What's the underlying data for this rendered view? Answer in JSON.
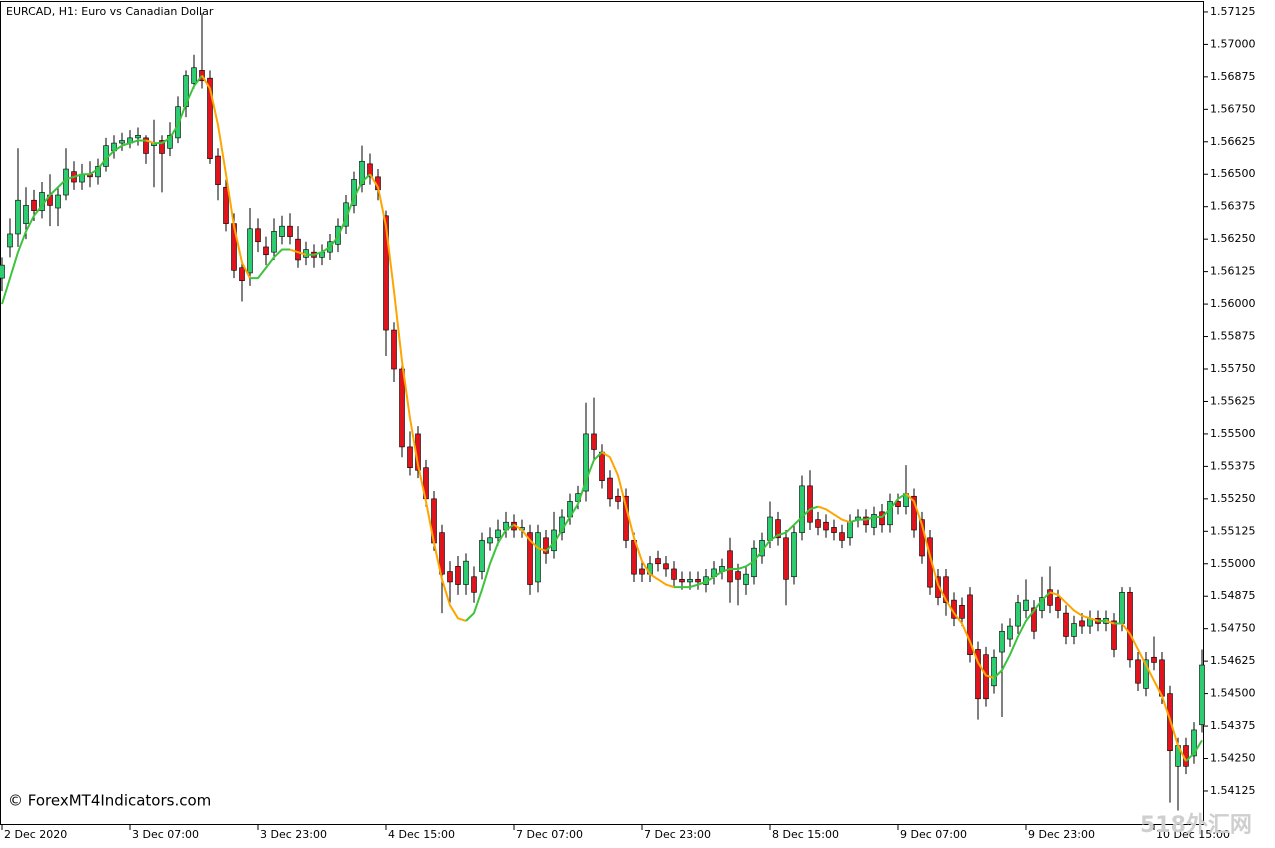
{
  "chart_data": {
    "type": "candlestick",
    "title": "EURCAD, H1:  Euro vs Canadian Dollar",
    "annotations": [
      "© ForexMT4Indicators.com",
      "518外汇网"
    ],
    "bull_color": "#2ecc71",
    "bear_color": "#e0141c",
    "xlim": [
      -0.25,
      150.25
    ],
    "xticks": [
      {
        "value": 0,
        "label": "2 Dec 2020"
      },
      {
        "value": 16,
        "label": "3 Dec 07:00"
      },
      {
        "value": 32,
        "label": "3 Dec 23:00"
      },
      {
        "value": 48,
        "label": "4 Dec 15:00"
      },
      {
        "value": 64,
        "label": "7 Dec 07:00"
      },
      {
        "value": 80,
        "label": "7 Dec 23:00"
      },
      {
        "value": 96,
        "label": "8 Dec 15:00"
      },
      {
        "value": 112,
        "label": "9 Dec 07:00"
      },
      {
        "value": 128,
        "label": "9 Dec 23:00"
      },
      {
        "value": 144,
        "label": "10 Dec 15:00"
      }
    ],
    "ylim": [
      1.53994,
      1.57171
    ],
    "yticks": [
      1.57125,
      {
        "value": 1.57,
        "label": "1.57000"
      },
      1.56875,
      {
        "value": 1.5675,
        "label": "1.56750"
      },
      1.56625,
      {
        "value": 1.565,
        "label": "1.56500"
      },
      1.56375,
      {
        "value": 1.5625,
        "label": "1.56250"
      },
      1.56125,
      {
        "value": 1.56,
        "label": "1.56000"
      },
      1.55875,
      {
        "value": 1.5575,
        "label": "1.55750"
      },
      1.55625,
      {
        "value": 1.555,
        "label": "1.55500"
      },
      1.55375,
      {
        "value": 1.5525,
        "label": "1.55250"
      },
      1.55125,
      {
        "value": 1.55,
        "label": "1.55000"
      },
      1.54875,
      {
        "value": 1.5475,
        "label": "1.54750"
      },
      1.54625,
      {
        "value": 1.545,
        "label": "1.54500"
      },
      1.54375,
      {
        "value": 1.5425,
        "label": "1.54250"
      },
      1.54125
    ],
    "candles": [
      [
        1.561,
        1.5618,
        1.5605,
        1.5615
      ],
      [
        1.5622,
        1.5633,
        1.5618,
        1.5627
      ],
      [
        1.5627,
        1.566,
        1.5622,
        1.564
      ],
      [
        1.5631,
        1.5645,
        1.5625,
        1.5638
      ],
      [
        1.564,
        1.5644,
        1.5632,
        1.5636
      ],
      [
        1.5636,
        1.5647,
        1.5633,
        1.5643
      ],
      [
        1.5642,
        1.565,
        1.563,
        1.5638
      ],
      [
        1.5637,
        1.5645,
        1.563,
        1.5642
      ],
      [
        1.5642,
        1.566,
        1.564,
        1.5652
      ],
      [
        1.5651,
        1.5655,
        1.5644,
        1.5647
      ],
      [
        1.5647,
        1.5654,
        1.5644,
        1.565
      ],
      [
        1.565,
        1.5655,
        1.5645,
        1.5649
      ],
      [
        1.5649,
        1.5656,
        1.5646,
        1.5653
      ],
      [
        1.5653,
        1.5664,
        1.5651,
        1.5661
      ],
      [
        1.5659,
        1.5665,
        1.5656,
        1.5662
      ],
      [
        1.5662,
        1.5666,
        1.5659,
        1.5663
      ],
      [
        1.5662,
        1.5667,
        1.566,
        1.5664
      ],
      [
        1.5664,
        1.5668,
        1.5661,
        1.5665
      ],
      [
        1.5664,
        1.5665,
        1.5654,
        1.5658
      ],
      [
        1.5661,
        1.5671,
        1.5645,
        1.5662
      ],
      [
        1.5663,
        1.5665,
        1.5643,
        1.5658
      ],
      [
        1.566,
        1.567,
        1.5657,
        1.5665
      ],
      [
        1.5664,
        1.568,
        1.5662,
        1.5676
      ],
      [
        1.5676,
        1.569,
        1.5672,
        1.5688
      ],
      [
        1.5685,
        1.5696,
        1.5683,
        1.5691
      ],
      [
        1.569,
        1.5712,
        1.5683,
        1.5686
      ],
      [
        1.5687,
        1.569,
        1.5654,
        1.5656
      ],
      [
        1.5657,
        1.566,
        1.564,
        1.5646
      ],
      [
        1.5645,
        1.5648,
        1.5628,
        1.5631
      ],
      [
        1.5631,
        1.5635,
        1.561,
        1.5613
      ],
      [
        1.5614,
        1.5617,
        1.5601,
        1.5609
      ],
      [
        1.5612,
        1.5637,
        1.5607,
        1.5629
      ],
      [
        1.5629,
        1.5633,
        1.562,
        1.5624
      ],
      [
        1.5622,
        1.5626,
        1.5615,
        1.5619
      ],
      [
        1.562,
        1.5633,
        1.5617,
        1.5628
      ],
      [
        1.5626,
        1.5634,
        1.5623,
        1.563
      ],
      [
        1.563,
        1.5635,
        1.5623,
        1.5626
      ],
      [
        1.5625,
        1.563,
        1.5614,
        1.5617
      ],
      [
        1.5618,
        1.5624,
        1.5615,
        1.5621
      ],
      [
        1.562,
        1.5623,
        1.5614,
        1.5618
      ],
      [
        1.5618,
        1.5623,
        1.5615,
        1.562
      ],
      [
        1.562,
        1.5627,
        1.5617,
        1.5624
      ],
      [
        1.5623,
        1.5633,
        1.562,
        1.563
      ],
      [
        1.563,
        1.5642,
        1.5627,
        1.5639
      ],
      [
        1.5638,
        1.5651,
        1.5635,
        1.5648
      ],
      [
        1.5646,
        1.5661,
        1.5643,
        1.5655
      ],
      [
        1.5654,
        1.5658,
        1.5646,
        1.5649
      ],
      [
        1.5649,
        1.5652,
        1.564,
        1.5644
      ],
      [
        1.5634,
        1.5636,
        1.558,
        1.559
      ],
      [
        1.559,
        1.5593,
        1.557,
        1.5575
      ],
      [
        1.5575,
        1.5577,
        1.5541,
        1.5545
      ],
      [
        1.5545,
        1.5551,
        1.5534,
        1.5537
      ],
      [
        1.555,
        1.5553,
        1.5533,
        1.5536
      ],
      [
        1.5537,
        1.554,
        1.5522,
        1.5525
      ],
      [
        1.5525,
        1.5528,
        1.5505,
        1.5508
      ],
      [
        1.5512,
        1.5515,
        1.5481,
        1.5496
      ],
      [
        1.5497,
        1.5501,
        1.5485,
        1.5493
      ],
      [
        1.5499,
        1.5503,
        1.5488,
        1.5492
      ],
      [
        1.5492,
        1.5504,
        1.5488,
        1.5501
      ],
      [
        1.5495,
        1.5499,
        1.5485,
        1.5489
      ],
      [
        1.5497,
        1.5512,
        1.5494,
        1.5509
      ],
      [
        1.5508,
        1.5514,
        1.5505,
        1.551
      ],
      [
        1.551,
        1.5517,
        1.5507,
        1.5513
      ],
      [
        1.5513,
        1.552,
        1.551,
        1.5516
      ],
      [
        1.5516,
        1.5519,
        1.551,
        1.5513
      ],
      [
        1.5513,
        1.5517,
        1.551,
        1.5514
      ],
      [
        1.5512,
        1.5515,
        1.5488,
        1.5492
      ],
      [
        1.5493,
        1.5515,
        1.5489,
        1.5512
      ],
      [
        1.551,
        1.5513,
        1.55,
        1.5504
      ],
      [
        1.5505,
        1.552,
        1.5502,
        1.5513
      ],
      [
        1.5512,
        1.5521,
        1.5509,
        1.5518
      ],
      [
        1.5518,
        1.5527,
        1.5515,
        1.5524
      ],
      [
        1.5524,
        1.553,
        1.5521,
        1.5527
      ],
      [
        1.5528,
        1.5562,
        1.5524,
        1.555
      ],
      [
        1.555,
        1.5564,
        1.554,
        1.5544
      ],
      [
        1.5543,
        1.5546,
        1.5529,
        1.5532
      ],
      [
        1.5533,
        1.5536,
        1.5522,
        1.5525
      ],
      [
        1.5526,
        1.5529,
        1.5521,
        1.5524
      ],
      [
        1.5526,
        1.5529,
        1.5506,
        1.5509
      ],
      [
        1.5509,
        1.5512,
        1.5493,
        1.5496
      ],
      [
        1.5498,
        1.5501,
        1.5493,
        1.5496
      ],
      [
        1.5496,
        1.5503,
        1.5493,
        1.55
      ],
      [
        1.5502,
        1.5505,
        1.5497,
        1.55
      ],
      [
        1.55,
        1.5503,
        1.5495,
        1.5498
      ],
      [
        1.5498,
        1.5501,
        1.5491,
        1.5494
      ],
      [
        1.5494,
        1.5497,
        1.549,
        1.5493
      ],
      [
        1.5493,
        1.5497,
        1.549,
        1.5494
      ],
      [
        1.5494,
        1.5497,
        1.549,
        1.5493
      ],
      [
        1.5492,
        1.5498,
        1.5489,
        1.5495
      ],
      [
        1.5495,
        1.5501,
        1.5492,
        1.5498
      ],
      [
        1.5497,
        1.5502,
        1.5494,
        1.5499
      ],
      [
        1.5505,
        1.551,
        1.5485,
        1.5493
      ],
      [
        1.5497,
        1.55,
        1.5484,
        1.5494
      ],
      [
        1.5492,
        1.5499,
        1.5488,
        1.5496
      ],
      [
        1.5495,
        1.5509,
        1.5492,
        1.5506
      ],
      [
        1.5503,
        1.5512,
        1.55,
        1.5509
      ],
      [
        1.5509,
        1.5524,
        1.5506,
        1.5518
      ],
      [
        1.5517,
        1.552,
        1.5507,
        1.551
      ],
      [
        1.551,
        1.5513,
        1.5484,
        1.5494
      ],
      [
        1.5495,
        1.5515,
        1.5492,
        1.5512
      ],
      [
        1.5512,
        1.5534,
        1.5509,
        1.553
      ],
      [
        1.553,
        1.5536,
        1.5513,
        1.5516
      ],
      [
        1.5517,
        1.552,
        1.5511,
        1.5514
      ],
      [
        1.5516,
        1.5519,
        1.551,
        1.5513
      ],
      [
        1.5514,
        1.5517,
        1.5509,
        1.5512
      ],
      [
        1.5512,
        1.5515,
        1.5506,
        1.5509
      ],
      [
        1.551,
        1.5519,
        1.5507,
        1.5516
      ],
      [
        1.5517,
        1.5521,
        1.5514,
        1.5518
      ],
      [
        1.5518,
        1.5521,
        1.5512,
        1.5515
      ],
      [
        1.5514,
        1.5522,
        1.5511,
        1.5519
      ],
      [
        1.552,
        1.5523,
        1.5512,
        1.5515
      ],
      [
        1.5515,
        1.5527,
        1.5512,
        1.5524
      ],
      [
        1.5524,
        1.5527,
        1.5519,
        1.5522
      ],
      [
        1.5522,
        1.5538,
        1.5519,
        1.5527
      ],
      [
        1.5526,
        1.5529,
        1.551,
        1.5513
      ],
      [
        1.5517,
        1.552,
        1.55,
        1.5503
      ],
      [
        1.551,
        1.5513,
        1.5488,
        1.5491
      ],
      [
        1.5495,
        1.5498,
        1.5484,
        1.5487
      ],
      [
        1.5495,
        1.5498,
        1.548,
        1.5485
      ],
      [
        1.5486,
        1.5489,
        1.5476,
        1.5479
      ],
      [
        1.5484,
        1.5487,
        1.5476,
        1.5479
      ],
      [
        1.5488,
        1.5491,
        1.5462,
        1.5465
      ],
      [
        1.5467,
        1.547,
        1.544,
        1.5448
      ],
      [
        1.5465,
        1.5468,
        1.5445,
        1.5448
      ],
      [
        1.5453,
        1.5467,
        1.545,
        1.5464
      ],
      [
        1.5466,
        1.5477,
        1.5441,
        1.5474
      ],
      [
        1.5471,
        1.5479,
        1.5468,
        1.5476
      ],
      [
        1.5476,
        1.5488,
        1.5473,
        1.5485
      ],
      [
        1.5482,
        1.5494,
        1.5479,
        1.5486
      ],
      [
        1.5483,
        1.5486,
        1.5471,
        1.5474
      ],
      [
        1.5482,
        1.5495,
        1.5479,
        1.5487
      ],
      [
        1.549,
        1.5499,
        1.5481,
        1.5484
      ],
      [
        1.5487,
        1.549,
        1.5479,
        1.5482
      ],
      [
        1.5481,
        1.5484,
        1.5469,
        1.5472
      ],
      [
        1.5472,
        1.548,
        1.5469,
        1.5477
      ],
      [
        1.5478,
        1.5481,
        1.5473,
        1.5476
      ],
      [
        1.5476,
        1.5482,
        1.5473,
        1.5479
      ],
      [
        1.5479,
        1.5482,
        1.5474,
        1.5477
      ],
      [
        1.5477,
        1.5482,
        1.5474,
        1.5479
      ],
      [
        1.5478,
        1.5481,
        1.5464,
        1.5467
      ],
      [
        1.5477,
        1.5491,
        1.5474,
        1.5489
      ],
      [
        1.5489,
        1.5491,
        1.546,
        1.5463
      ],
      [
        1.5463,
        1.5466,
        1.5451,
        1.5454
      ],
      [
        1.5452,
        1.5466,
        1.5449,
        1.5463
      ],
      [
        1.5464,
        1.5472,
        1.5459,
        1.5462
      ],
      [
        1.5463,
        1.5466,
        1.5446,
        1.5449
      ],
      [
        1.545,
        1.5453,
        1.5408,
        1.5428
      ],
      [
        1.5422,
        1.5433,
        1.5405,
        1.543
      ],
      [
        1.543,
        1.5433,
        1.5419,
        1.5422
      ],
      [
        1.5426,
        1.5439,
        1.5423,
        1.5436
      ],
      [
        1.5438,
        1.5467,
        1.5435,
        1.5461
      ]
    ],
    "ma": {
      "up_color": "#3cc43c",
      "down_color": "#ffa500",
      "values": [
        1.56,
        1.561,
        1.562,
        1.5628,
        1.5634,
        1.5638,
        1.5642,
        1.5645,
        1.5648,
        1.5649,
        1.565,
        1.565,
        1.5652,
        1.5656,
        1.5659,
        1.5661,
        1.5662,
        1.5663,
        1.5663,
        1.5662,
        1.5662,
        1.5664,
        1.5669,
        1.5677,
        1.5684,
        1.5688,
        1.5683,
        1.5669,
        1.565,
        1.563,
        1.5616,
        1.561,
        1.561,
        1.5614,
        1.5618,
        1.5621,
        1.5621,
        1.562,
        1.5619,
        1.5619,
        1.562,
        1.5622,
        1.5626,
        1.5633,
        1.5641,
        1.5647,
        1.565,
        1.5645,
        1.563,
        1.5605,
        1.5578,
        1.5556,
        1.5538,
        1.5524,
        1.5508,
        1.5494,
        1.5484,
        1.5479,
        1.5478,
        1.5481,
        1.549,
        1.55,
        1.5508,
        1.5513,
        1.5515,
        1.5513,
        1.5509,
        1.5506,
        1.5505,
        1.5508,
        1.5513,
        1.5518,
        1.5523,
        1.5532,
        1.554,
        1.5543,
        1.5541,
        1.5534,
        1.5522,
        1.551,
        1.5501,
        1.5496,
        1.5494,
        1.5492,
        1.5491,
        1.5491,
        1.5491,
        1.5492,
        1.5493,
        1.5495,
        1.5497,
        1.5498,
        1.5498,
        1.5499,
        1.5501,
        1.5505,
        1.5509,
        1.5511,
        1.5512,
        1.5515,
        1.5518,
        1.5521,
        1.5522,
        1.5521,
        1.5519,
        1.5517,
        1.5516,
        1.5517,
        1.5517,
        1.5518,
        1.5518,
        1.5521,
        1.5525,
        1.5527,
        1.5524,
        1.5515,
        1.5503,
        1.5492,
        1.5486,
        1.5481,
        1.5477,
        1.547,
        1.5462,
        1.5457,
        1.5456,
        1.5459,
        1.5465,
        1.5472,
        1.5478,
        1.5482,
        1.5486,
        1.5489,
        1.5488,
        1.5485,
        1.5482,
        1.548,
        1.5479,
        1.5478,
        1.5478,
        1.5477,
        1.5477,
        1.5473,
        1.5467,
        1.5461,
        1.5455,
        1.5449,
        1.544,
        1.543,
        1.5424,
        1.5427,
        1.5432
      ]
    }
  }
}
